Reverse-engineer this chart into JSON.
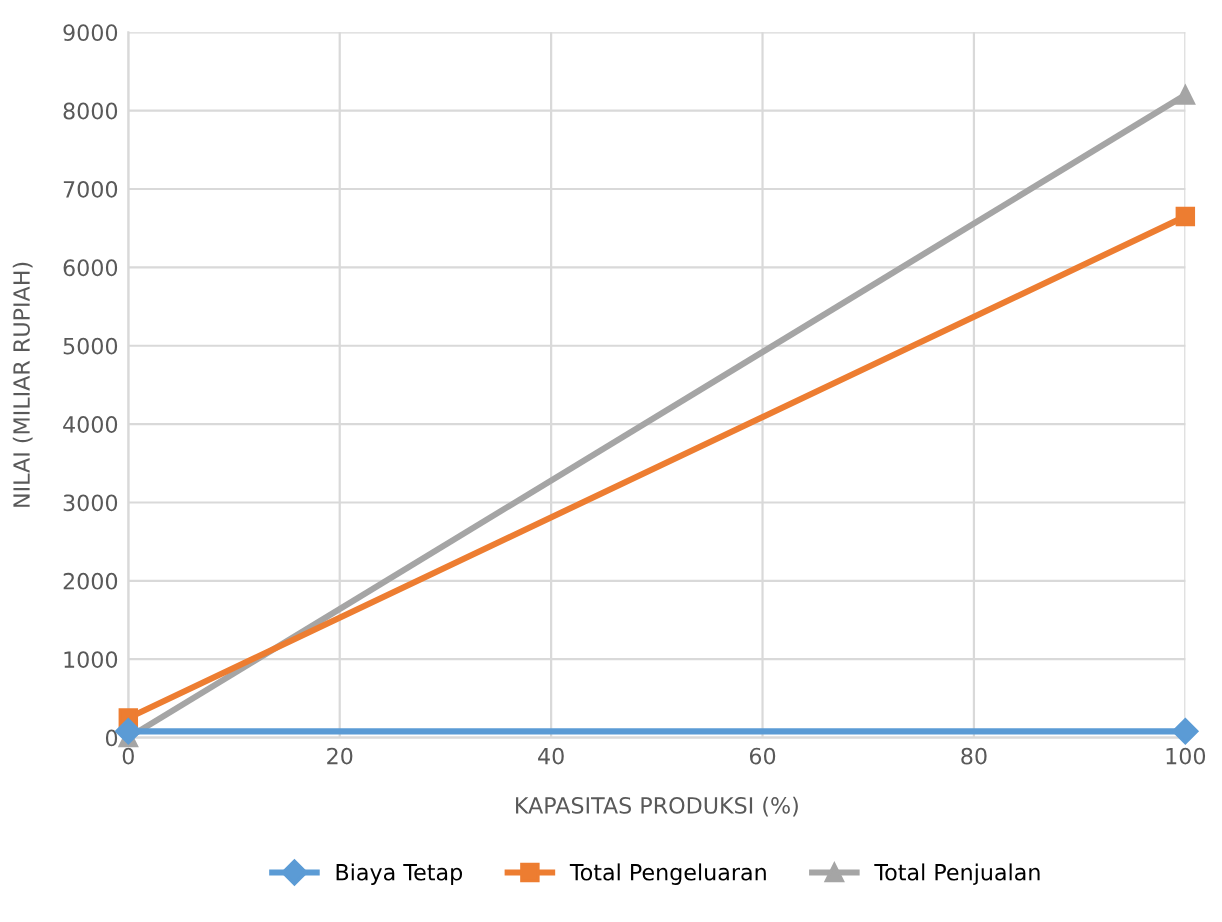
{
  "chart_data": {
    "type": "line",
    "xlabel": "KAPASITAS PRODUKSI (%)",
    "ylabel": "NILAI (MILIAR RUPIAH)",
    "x": [
      0,
      100
    ],
    "series": [
      {
        "name": "Biaya Tetap",
        "color": "#5b9bd5",
        "marker": "diamond",
        "values": [
          80,
          80
        ]
      },
      {
        "name": "Total Pengeluaran",
        "color": "#ed7d31",
        "marker": "square",
        "values": [
          250,
          6650
        ]
      },
      {
        "name": "Total Penjualan",
        "color": "#a5a5a5",
        "marker": "triangle",
        "values": [
          0,
          8200
        ]
      }
    ],
    "xlim": [
      0,
      100
    ],
    "xticks": [
      0,
      20,
      40,
      60,
      80,
      100
    ],
    "ylim": [
      0,
      9000
    ],
    "yticks": [
      0,
      1000,
      2000,
      3000,
      4000,
      5000,
      6000,
      7000,
      8000,
      9000
    ],
    "grid": true,
    "legend": "bottom",
    "line_style": "solid"
  }
}
